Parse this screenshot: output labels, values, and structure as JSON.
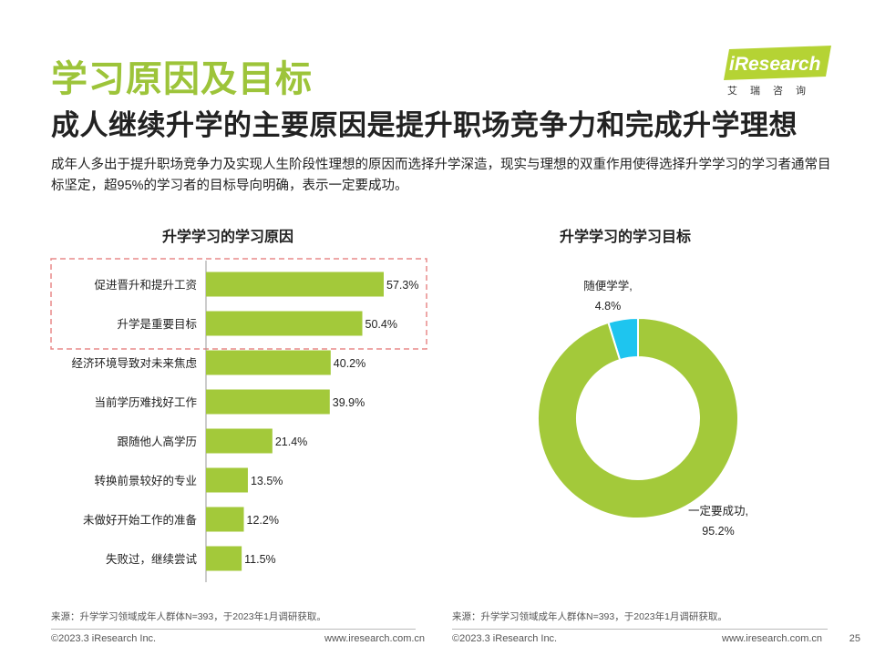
{
  "header": {
    "title": "学习原因及目标",
    "subtitle": "成人继续升学的主要原因是提升职场竞争力和完成升学理想",
    "description": "成年人多出于提升职场竞争力及实现人生阶段性理想的原因而选择升学深造，现实与理想的双重作用使得选择升学学习的学习者通常目标坚定，超95%的学习者的目标导向明确，表示一定要成功。"
  },
  "logo": {
    "brand": "iResearch",
    "brand_cn": "艾瑞咨询",
    "color": "#b5d334"
  },
  "colors": {
    "accent": "#9dc43a",
    "bar": "#a3c93a",
    "highlight_box": "#e88a8a",
    "pie_minor": "#1ec5ef"
  },
  "chart_data": [
    {
      "type": "bar",
      "orientation": "horizontal",
      "title": "升学学习的学习原因",
      "categories": [
        "促进晋升和提升工资",
        "升学是重要目标",
        "经济环境导致对未来焦虑",
        "当前学历难找好工作",
        "跟随他人高学历",
        "转换前景较好的专业",
        "未做好开始工作的准备",
        "失败过，继续尝试"
      ],
      "values": [
        57.3,
        50.4,
        40.2,
        39.9,
        21.4,
        13.5,
        12.2,
        11.5
      ],
      "value_labels": [
        "57.3%",
        "50.4%",
        "40.2%",
        "39.9%",
        "21.4%",
        "13.5%",
        "12.2%",
        "11.5%"
      ],
      "highlighted": [
        0,
        1
      ],
      "xlim": [
        0,
        60
      ],
      "source": "来源：升学学习领域成年人群体N=393，于2023年1月调研获取。"
    },
    {
      "type": "pie",
      "style": "donut",
      "title": "升学学习的学习目标",
      "slices": [
        {
          "label": "随便学学,",
          "value": 4.8,
          "value_label": "4.8%",
          "color": "#1ec5ef"
        },
        {
          "label": "一定要成功,",
          "value": 95.2,
          "value_label": "95.2%",
          "color": "#a3c93a"
        }
      ],
      "source": "来源：升学学习领域成年人群体N=393，于2023年1月调研获取。"
    }
  ],
  "footer": {
    "left_copyright": "©2023.3 iResearch Inc.",
    "left_url": "www.iresearch.com.cn",
    "right_copyright": "©2023.3 iResearch Inc.",
    "right_url": "www.iresearch.com.cn",
    "page": "25"
  }
}
